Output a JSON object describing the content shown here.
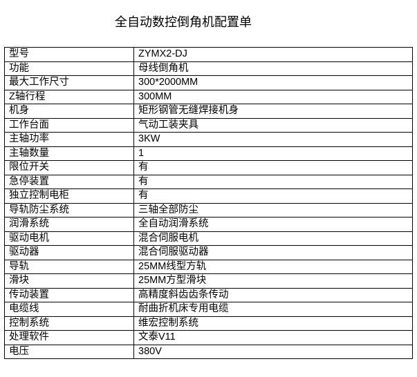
{
  "title": "全自动数控倒角机配置单",
  "rows": [
    {
      "label": "型号",
      "value": "ZYMX2-DJ"
    },
    {
      "label": "功能",
      "value": "母线倒角机"
    },
    {
      "label": "最大工作尺寸",
      "value": "300*2000MM"
    },
    {
      "label": "Z轴行程",
      "value": "300MM"
    },
    {
      "label": "机身",
      "value": "矩形钢管无缝焊接机身"
    },
    {
      "label": "工作台面",
      "value": "气动工装夹具"
    },
    {
      "label": "主轴功率",
      "value": "3KW"
    },
    {
      "label": "主轴数量",
      "value": "1"
    },
    {
      "label": "限位开关",
      "value": "有"
    },
    {
      "label": "急停装置",
      "value": "有"
    },
    {
      "label": "独立控制电柜",
      "value": "有"
    },
    {
      "label": "导轨防尘系统",
      "value": "三轴全部防尘"
    },
    {
      "label": "润滑系统",
      "value": "全自动润滑系统"
    },
    {
      "label": "驱动电机",
      "value": "混合伺服电机"
    },
    {
      "label": "驱动器",
      "value": "混合伺服驱动器"
    },
    {
      "label": "导轨",
      "value": "25MM线型方轨"
    },
    {
      "label": "滑块",
      "value": "25MM方型滑块"
    },
    {
      "label": "传动装置",
      "value": "高精度斜齿齿条传动"
    },
    {
      "label": "电缆线",
      "value": "耐曲折机床专用电缆"
    },
    {
      "label": "控制系统",
      "value": "维宏控制系统"
    },
    {
      "label": "处理软件",
      "value": "文泰V11"
    },
    {
      "label": "电压",
      "value": "380V"
    }
  ]
}
